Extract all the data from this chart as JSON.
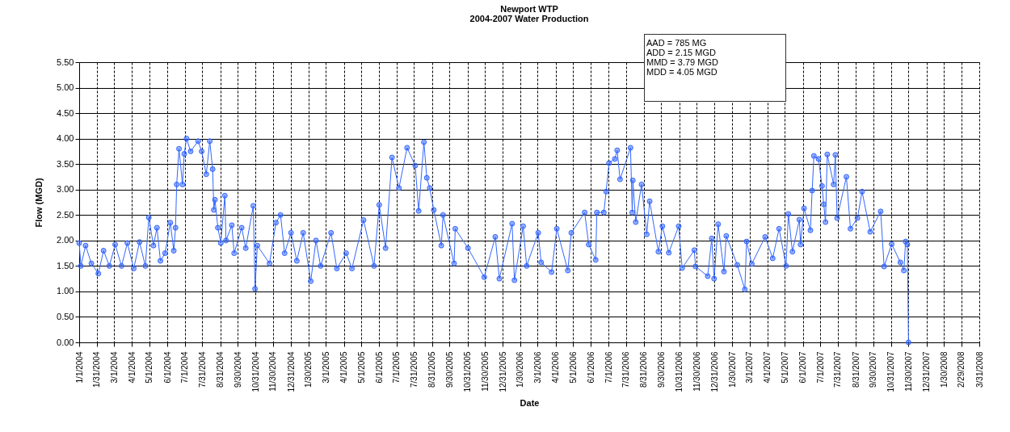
{
  "chart_data": {
    "type": "line",
    "title": "Newport WTP",
    "subtitle": "2004-2007 Water Production",
    "xlabel": "Date",
    "ylabel": "Flow (MGD)",
    "annotations": [
      "AAD = 785 MG",
      "ADD = 2.15 MGD",
      "MMD = 3.79 MGD",
      "MDD = 4.05 MGD"
    ],
    "marker": "circle",
    "grid": true,
    "xlim": [
      "2004-01-01",
      "2008-03-31"
    ],
    "xticks": [
      {
        "value": "2004-01-01",
        "label": "1/1/2004"
      },
      {
        "value": "2004-01-31",
        "label": "1/31/2004"
      },
      {
        "value": "2004-03-01",
        "label": "3/1/2004"
      },
      {
        "value": "2004-04-01",
        "label": "4/1/2004"
      },
      {
        "value": "2004-05-01",
        "label": "5/1/2004"
      },
      {
        "value": "2004-06-01",
        "label": "6/1/2004"
      },
      {
        "value": "2004-07-01",
        "label": "7/1/2004"
      },
      {
        "value": "2004-07-31",
        "label": "7/31/2004"
      },
      {
        "value": "2004-08-31",
        "label": "8/31/2004"
      },
      {
        "value": "2004-09-30",
        "label": "9/30/2004"
      },
      {
        "value": "2004-10-31",
        "label": "10/31/2004"
      },
      {
        "value": "2004-11-30",
        "label": "11/30/2004"
      },
      {
        "value": "2004-12-31",
        "label": "12/31/2004"
      },
      {
        "value": "2005-01-30",
        "label": "1/30/2005"
      },
      {
        "value": "2005-03-01",
        "label": "3/1/2005"
      },
      {
        "value": "2005-04-01",
        "label": "4/1/2005"
      },
      {
        "value": "2005-05-01",
        "label": "5/1/2005"
      },
      {
        "value": "2005-06-01",
        "label": "6/1/2005"
      },
      {
        "value": "2005-07-01",
        "label": "7/1/2005"
      },
      {
        "value": "2005-07-31",
        "label": "7/31/2005"
      },
      {
        "value": "2005-08-31",
        "label": "8/31/2005"
      },
      {
        "value": "2005-09-30",
        "label": "9/30/2005"
      },
      {
        "value": "2005-10-31",
        "label": "10/31/2005"
      },
      {
        "value": "2005-11-30",
        "label": "11/30/2005"
      },
      {
        "value": "2005-12-31",
        "label": "12/31/2005"
      },
      {
        "value": "2006-01-30",
        "label": "1/30/2006"
      },
      {
        "value": "2006-03-01",
        "label": "3/1/2006"
      },
      {
        "value": "2006-04-01",
        "label": "4/1/2006"
      },
      {
        "value": "2006-05-01",
        "label": "5/1/2006"
      },
      {
        "value": "2006-06-01",
        "label": "6/1/2006"
      },
      {
        "value": "2006-07-01",
        "label": "7/1/2006"
      },
      {
        "value": "2006-07-31",
        "label": "7/31/2006"
      },
      {
        "value": "2006-08-31",
        "label": "8/31/2006"
      },
      {
        "value": "2006-09-30",
        "label": "9/30/2006"
      },
      {
        "value": "2006-10-31",
        "label": "10/31/2006"
      },
      {
        "value": "2006-11-30",
        "label": "11/30/2006"
      },
      {
        "value": "2006-12-31",
        "label": "12/31/2006"
      },
      {
        "value": "2007-01-30",
        "label": "1/30/2007"
      },
      {
        "value": "2007-03-01",
        "label": "3/1/2007"
      },
      {
        "value": "2007-04-01",
        "label": "4/1/2007"
      },
      {
        "value": "2007-05-01",
        "label": "5/1/2007"
      },
      {
        "value": "2007-06-01",
        "label": "6/1/2007"
      },
      {
        "value": "2007-07-01",
        "label": "7/1/2007"
      },
      {
        "value": "2007-07-31",
        "label": "7/31/2007"
      },
      {
        "value": "2007-08-31",
        "label": "8/31/2007"
      },
      {
        "value": "2007-09-30",
        "label": "9/30/2007"
      },
      {
        "value": "2007-10-31",
        "label": "10/31/2007"
      },
      {
        "value": "2007-11-30",
        "label": "11/30/2007"
      },
      {
        "value": "2007-12-31",
        "label": "12/31/2007"
      },
      {
        "value": "2008-01-30",
        "label": "1/30/2008"
      },
      {
        "value": "2008-02-29",
        "label": "2/29/2008"
      },
      {
        "value": "2008-03-31",
        "label": "3/31/2008"
      }
    ],
    "ylim": [
      0,
      5.5
    ],
    "yticks": [
      {
        "value": 0,
        "label": "0.00"
      },
      {
        "value": 0.5,
        "label": "0.50"
      },
      {
        "value": 1,
        "label": "1.00"
      },
      {
        "value": 1.5,
        "label": "1.50"
      },
      {
        "value": 2,
        "label": "2.00"
      },
      {
        "value": 2.5,
        "label": "2.50"
      },
      {
        "value": 3,
        "label": "3.00"
      },
      {
        "value": 3.5,
        "label": "3.50"
      },
      {
        "value": 4,
        "label": "4.00"
      },
      {
        "value": 4.5,
        "label": "4.50"
      },
      {
        "value": 5,
        "label": "5.00"
      },
      {
        "value": 5.5,
        "label": "5.50"
      }
    ],
    "series": [
      {
        "color": "#3366ff",
        "x": [
          "2004-01-01",
          "2004-01-04",
          "2004-01-12",
          "2004-01-22",
          "2004-02-03",
          "2004-02-12",
          "2004-02-22",
          "2004-03-03",
          "2004-03-14",
          "2004-03-24",
          "2004-04-04",
          "2004-04-14",
          "2004-04-24",
          "2004-04-30",
          "2004-05-08",
          "2004-05-14",
          "2004-05-20",
          "2004-05-28",
          "2004-06-06",
          "2004-06-12",
          "2004-06-15",
          "2004-06-17",
          "2004-06-21",
          "2004-06-27",
          "2004-06-30",
          "2004-07-04",
          "2004-07-11",
          "2004-07-24",
          "2004-07-30",
          "2004-08-07",
          "2004-08-13",
          "2004-08-18",
          "2004-08-20",
          "2004-08-22",
          "2004-08-27",
          "2004-09-01",
          "2004-09-08",
          "2004-09-10",
          "2004-09-20",
          "2004-09-24",
          "2004-10-07",
          "2004-10-14",
          "2004-10-27",
          "2004-10-30",
          "2004-11-03",
          "2004-11-24",
          "2004-12-05",
          "2004-12-13",
          "2004-12-20",
          "2004-12-31",
          "2005-01-10",
          "2005-01-21",
          "2005-02-03",
          "2005-02-12",
          "2005-02-20",
          "2005-03-10",
          "2005-03-20",
          "2005-04-05",
          "2005-04-15",
          "2005-05-05",
          "2005-05-23",
          "2005-06-01",
          "2005-06-12",
          "2005-06-23",
          "2005-07-05",
          "2005-07-19",
          "2005-08-02",
          "2005-08-08",
          "2005-08-17",
          "2005-08-22",
          "2005-08-27",
          "2005-09-03",
          "2005-09-16",
          "2005-09-19",
          "2005-10-08",
          "2005-10-10",
          "2005-11-01",
          "2005-11-29",
          "2005-12-18",
          "2005-12-25",
          "2006-01-16",
          "2006-01-20",
          "2006-02-04",
          "2006-02-10",
          "2006-03-02",
          "2006-03-07",
          "2006-03-25",
          "2006-04-03",
          "2006-04-22",
          "2006-04-28",
          "2006-05-21",
          "2006-05-28",
          "2006-06-09",
          "2006-06-11",
          "2006-06-23",
          "2006-06-27",
          "2006-07-02",
          "2006-07-12",
          "2006-07-16",
          "2006-07-21",
          "2006-08-08",
          "2006-08-11",
          "2006-08-12",
          "2006-08-17",
          "2006-08-27",
          "2006-09-05",
          "2006-09-10",
          "2006-09-25",
          "2006-10-02",
          "2006-10-13",
          "2006-10-30",
          "2006-11-05",
          "2006-11-26",
          "2006-11-28",
          "2006-12-19",
          "2006-12-26",
          "2006-12-30",
          "2007-01-06",
          "2007-01-16",
          "2007-01-20",
          "2007-02-08",
          "2007-02-21",
          "2007-02-24",
          "2007-03-05",
          "2007-03-28",
          "2007-04-10",
          "2007-04-21",
          "2007-05-03",
          "2007-05-07",
          "2007-05-14",
          "2007-05-26",
          "2007-05-28",
          "2007-06-03",
          "2007-06-14",
          "2007-06-17",
          "2007-06-20",
          "2007-06-28",
          "2007-07-04",
          "2007-07-07",
          "2007-07-10",
          "2007-07-13",
          "2007-07-24",
          "2007-07-27",
          "2007-07-30",
          "2007-08-15",
          "2007-08-22",
          "2007-09-03",
          "2007-09-11",
          "2007-09-25",
          "2007-10-13",
          "2007-10-19",
          "2007-11-01",
          "2007-11-16",
          "2007-11-22",
          "2007-11-25",
          "2007-11-28",
          "2007-11-30"
        ],
        "values": [
          1.95,
          1.5,
          1.9,
          1.55,
          1.35,
          1.8,
          1.5,
          1.92,
          1.5,
          1.95,
          1.45,
          1.97,
          1.5,
          2.45,
          1.9,
          2.25,
          1.6,
          1.75,
          2.35,
          1.8,
          2.25,
          3.1,
          3.8,
          3.1,
          3.7,
          4.0,
          3.75,
          3.95,
          3.75,
          3.3,
          3.95,
          3.4,
          2.6,
          2.8,
          2.25,
          1.95,
          2.88,
          2.0,
          2.3,
          1.75,
          2.25,
          1.85,
          2.68,
          1.05,
          1.9,
          1.55,
          2.35,
          2.5,
          1.75,
          2.15,
          1.6,
          2.15,
          1.2,
          2.0,
          1.5,
          2.15,
          1.45,
          1.75,
          1.45,
          2.4,
          1.5,
          2.7,
          1.85,
          3.63,
          3.03,
          3.82,
          3.47,
          2.58,
          3.93,
          3.23,
          3.03,
          2.6,
          1.9,
          2.5,
          1.55,
          2.23,
          1.85,
          1.28,
          2.07,
          1.25,
          2.33,
          1.22,
          2.28,
          1.5,
          2.15,
          1.57,
          1.38,
          2.23,
          1.41,
          2.15,
          2.55,
          1.92,
          1.62,
          2.55,
          2.55,
          2.96,
          3.52,
          3.6,
          3.77,
          3.2,
          3.82,
          2.55,
          3.18,
          2.36,
          3.1,
          2.12,
          2.77,
          1.78,
          2.28,
          1.76,
          2.28,
          1.46,
          1.81,
          1.49,
          1.3,
          2.04,
          1.25,
          2.32,
          1.39,
          2.09,
          1.52,
          1.04,
          1.98,
          1.54,
          2.07,
          1.65,
          2.23,
          1.5,
          2.52,
          1.78,
          2.41,
          1.92,
          2.63,
          2.2,
          2.98,
          3.66,
          3.6,
          3.07,
          2.71,
          2.36,
          3.69,
          3.1,
          3.68,
          2.44,
          3.25,
          2.23,
          2.44,
          2.96,
          2.17,
          2.57,
          1.49,
          1.93,
          1.57,
          1.41,
          1.98,
          1.92,
          0.0
        ]
      }
    ]
  }
}
